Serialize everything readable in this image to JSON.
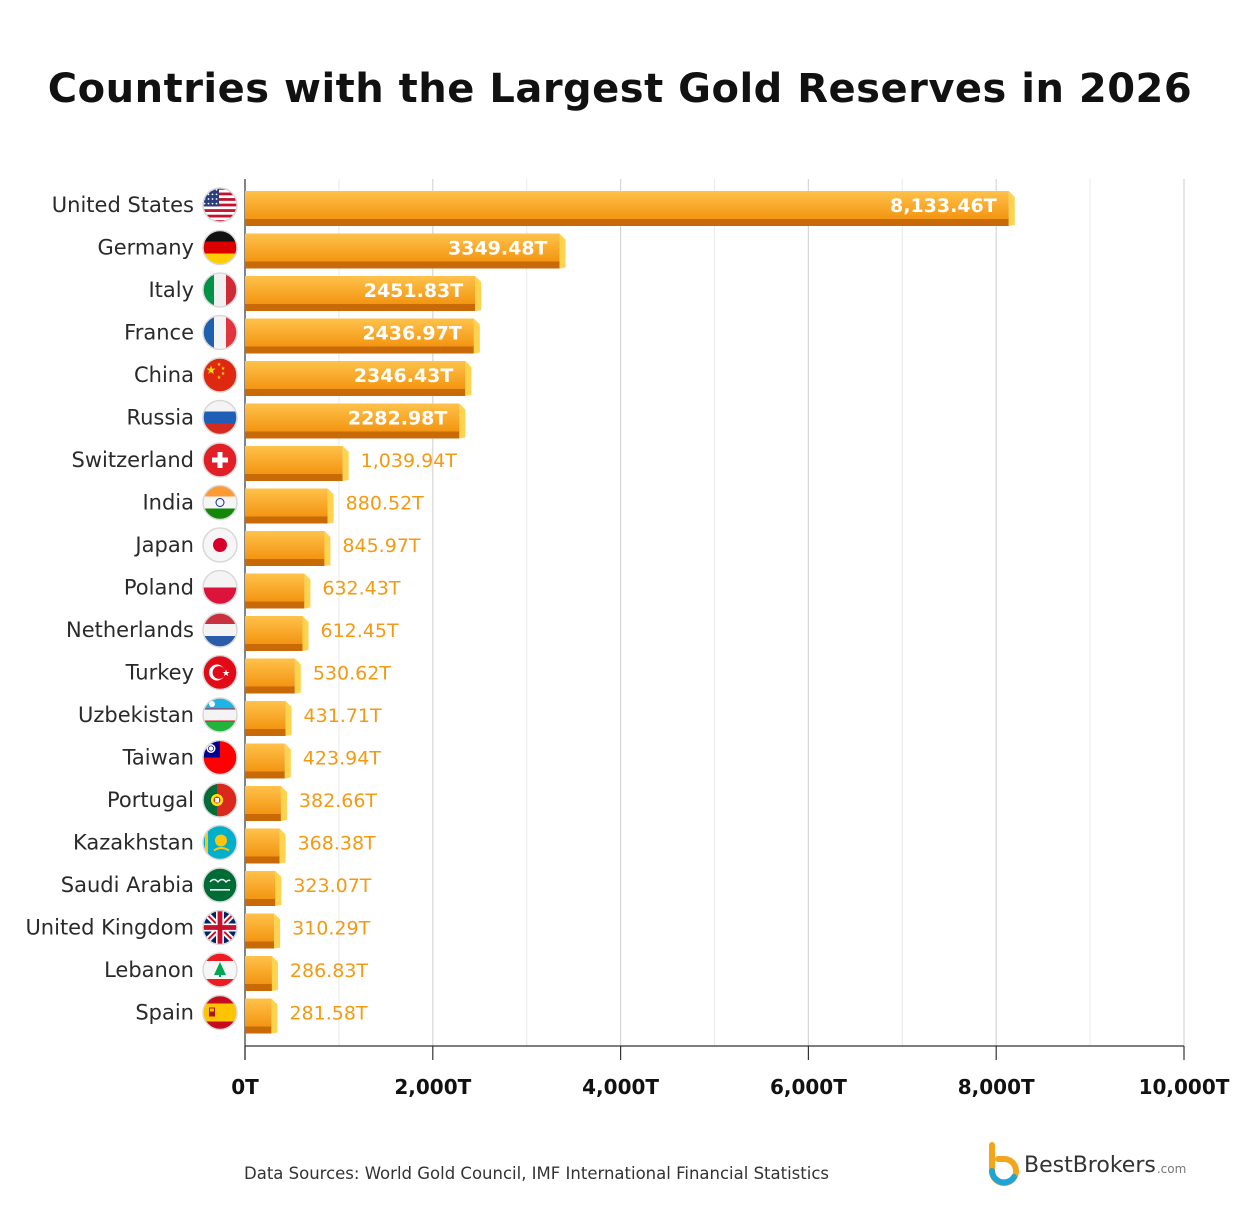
{
  "title": "Countries with the Largest Gold Reserves in 2026",
  "footer": {
    "source": "Data Sources: World Gold Council, IMF International Financial Statistics"
  },
  "brand": {
    "name": "BestBrokers",
    "suffix": ".com"
  },
  "chart_data": {
    "type": "bar",
    "orientation": "horizontal",
    "title": "Countries with the Largest Gold Reserves in 2026",
    "xlabel": "",
    "ylabel": "",
    "xlim": [
      0,
      10000
    ],
    "xticks": [
      0,
      2000,
      4000,
      6000,
      8000,
      10000
    ],
    "xtick_labels": [
      "0T",
      "2,000T",
      "4,000T",
      "6,000T",
      "8,000T",
      "10,000T"
    ],
    "grid": true,
    "bar_color": "#f7a21b",
    "label_color_outside": "#f39a12",
    "categories": [
      "United States",
      "Germany",
      "Italy",
      "France",
      "China",
      "Russia",
      "Switzerland",
      "India",
      "Japan",
      "Poland",
      "Netherlands",
      "Turkey",
      "Uzbekistan",
      "Taiwan",
      "Portugal",
      "Kazakhstan",
      "Saudi Arabia",
      "United Kingdom",
      "Lebanon",
      "Spain"
    ],
    "values": [
      8133.46,
      3349.48,
      2451.83,
      2436.97,
      2346.43,
      2282.98,
      1039.94,
      880.52,
      845.97,
      632.43,
      612.45,
      530.62,
      431.71,
      423.94,
      382.66,
      368.38,
      323.07,
      310.29,
      286.83,
      281.58
    ],
    "value_labels": [
      "8,133.46T",
      "3349.48T",
      "2451.83T",
      "2436.97T",
      "2346.43T",
      "2282.98T",
      "1,039.94T",
      "880.52T",
      "845.97T",
      "632.43T",
      "612.45T",
      "530.62T",
      "431.71T",
      "423.94T",
      "382.66T",
      "368.38T",
      "323.07T",
      "310.29T",
      "286.83T",
      "281.58T"
    ],
    "flags": [
      "us-flag-icon",
      "de-flag-icon",
      "it-flag-icon",
      "fr-flag-icon",
      "cn-flag-icon",
      "ru-flag-icon",
      "ch-flag-icon",
      "in-flag-icon",
      "jp-flag-icon",
      "pl-flag-icon",
      "nl-flag-icon",
      "tr-flag-icon",
      "uz-flag-icon",
      "tw-flag-icon",
      "pt-flag-icon",
      "kz-flag-icon",
      "sa-flag-icon",
      "gb-flag-icon",
      "lb-flag-icon",
      "es-flag-icon"
    ]
  }
}
